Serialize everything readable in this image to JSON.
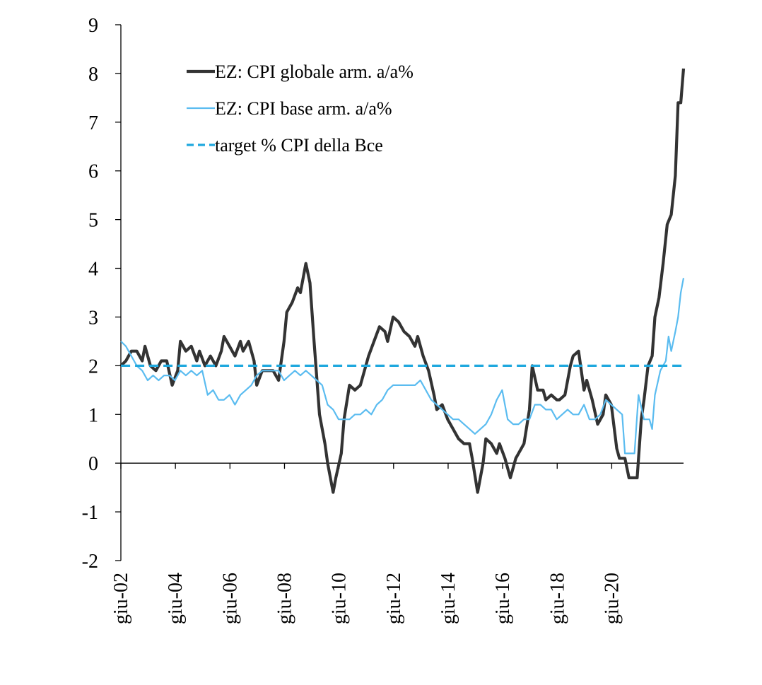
{
  "chart_data": {
    "type": "line",
    "title": "",
    "xlabel": "",
    "ylabel": "",
    "ylim": [
      -2,
      9
    ],
    "yticks": [
      -2,
      -1,
      0,
      1,
      2,
      3,
      4,
      5,
      6,
      7,
      8,
      9
    ],
    "xlim": [
      2002.417,
      2022.333
    ],
    "xticks": [
      {
        "label": "giu-02",
        "x": 2002.417
      },
      {
        "label": "giu-04",
        "x": 2004.417
      },
      {
        "label": "giu-06",
        "x": 2006.417
      },
      {
        "label": "giu-08",
        "x": 2008.417
      },
      {
        "label": "giu-10",
        "x": 2010.417
      },
      {
        "label": "giu-12",
        "x": 2012.417
      },
      {
        "label": "giu-14",
        "x": 2014.417
      },
      {
        "label": "giu-16",
        "x": 2016.417
      },
      {
        "label": "giu-18",
        "x": 2018.417
      },
      {
        "label": "giu-20",
        "x": 2020.417
      }
    ],
    "grid": false,
    "legend_position": "top-left",
    "series": [
      {
        "name": "EZ: CPI globale arm. a/a%",
        "color": "#333333",
        "style": "solid",
        "points": [
          [
            2002.42,
            2.0
          ],
          [
            2002.6,
            2.1
          ],
          [
            2002.8,
            2.3
          ],
          [
            2003.0,
            2.3
          ],
          [
            2003.2,
            2.1
          ],
          [
            2003.3,
            2.4
          ],
          [
            2003.5,
            2.0
          ],
          [
            2003.7,
            1.9
          ],
          [
            2003.9,
            2.1
          ],
          [
            2004.1,
            2.1
          ],
          [
            2004.3,
            1.6
          ],
          [
            2004.5,
            1.9
          ],
          [
            2004.6,
            2.5
          ],
          [
            2004.8,
            2.3
          ],
          [
            2005.0,
            2.4
          ],
          [
            2005.2,
            2.1
          ],
          [
            2005.3,
            2.3
          ],
          [
            2005.5,
            2.0
          ],
          [
            2005.7,
            2.2
          ],
          [
            2005.9,
            2.0
          ],
          [
            2006.1,
            2.3
          ],
          [
            2006.2,
            2.6
          ],
          [
            2006.4,
            2.4
          ],
          [
            2006.6,
            2.2
          ],
          [
            2006.8,
            2.5
          ],
          [
            2006.9,
            2.3
          ],
          [
            2007.1,
            2.5
          ],
          [
            2007.3,
            2.1
          ],
          [
            2007.4,
            1.6
          ],
          [
            2007.6,
            1.9
          ],
          [
            2007.8,
            1.9
          ],
          [
            2008.0,
            1.9
          ],
          [
            2008.2,
            1.7
          ],
          [
            2008.4,
            2.5
          ],
          [
            2008.5,
            3.1
          ],
          [
            2008.7,
            3.3
          ],
          [
            2008.9,
            3.6
          ],
          [
            2009.0,
            3.5
          ],
          [
            2009.2,
            4.1
          ],
          [
            2009.35,
            3.7
          ],
          [
            2009.5,
            2.5
          ],
          [
            2009.7,
            1.0
          ],
          [
            2009.9,
            0.4
          ],
          [
            2010.0,
            0.0
          ],
          [
            2010.2,
            -0.6
          ],
          [
            2010.3,
            -0.3
          ],
          [
            2010.5,
            0.2
          ],
          [
            2010.6,
            0.9
          ],
          [
            2010.8,
            1.6
          ],
          [
            2011.0,
            1.5
          ],
          [
            2011.2,
            1.6
          ],
          [
            2011.3,
            1.8
          ],
          [
            2011.5,
            2.2
          ],
          [
            2011.7,
            2.5
          ],
          [
            2011.9,
            2.8
          ],
          [
            2012.1,
            2.7
          ],
          [
            2012.2,
            2.5
          ],
          [
            2012.4,
            3.0
          ],
          [
            2012.6,
            2.9
          ],
          [
            2012.8,
            2.7
          ],
          [
            2013.0,
            2.6
          ],
          [
            2013.2,
            2.4
          ],
          [
            2013.3,
            2.6
          ],
          [
            2013.5,
            2.2
          ],
          [
            2013.7,
            1.9
          ],
          [
            2013.9,
            1.4
          ],
          [
            2014.0,
            1.1
          ],
          [
            2014.2,
            1.2
          ],
          [
            2014.4,
            0.9
          ],
          [
            2014.6,
            0.7
          ],
          [
            2014.8,
            0.5
          ],
          [
            2015.0,
            0.4
          ],
          [
            2015.2,
            0.4
          ],
          [
            2015.3,
            0.1
          ],
          [
            2015.5,
            -0.6
          ],
          [
            2015.7,
            0.0
          ],
          [
            2015.8,
            0.5
          ],
          [
            2016.0,
            0.4
          ],
          [
            2016.2,
            0.2
          ],
          [
            2016.3,
            0.4
          ],
          [
            2016.5,
            0.1
          ],
          [
            2016.7,
            -0.3
          ],
          [
            2016.9,
            0.1
          ],
          [
            2017.0,
            0.2
          ],
          [
            2017.2,
            0.4
          ],
          [
            2017.4,
            1.1
          ],
          [
            2017.5,
            2.0
          ],
          [
            2017.7,
            1.5
          ],
          [
            2017.9,
            1.5
          ],
          [
            2018.0,
            1.3
          ],
          [
            2018.2,
            1.4
          ],
          [
            2018.4,
            1.3
          ],
          [
            2018.5,
            1.3
          ],
          [
            2018.7,
            1.4
          ],
          [
            2018.9,
            2.0
          ],
          [
            2019.0,
            2.2
          ],
          [
            2019.2,
            2.3
          ],
          [
            2019.4,
            1.5
          ],
          [
            2019.5,
            1.7
          ],
          [
            2019.7,
            1.3
          ],
          [
            2019.9,
            0.8
          ],
          [
            2020.1,
            1.0
          ],
          [
            2020.2,
            1.4
          ],
          [
            2020.4,
            1.2
          ],
          [
            2020.6,
            0.3
          ],
          [
            2020.7,
            0.1
          ],
          [
            2020.9,
            0.1
          ],
          [
            2021.05,
            -0.3
          ],
          [
            2021.2,
            -0.3
          ],
          [
            2021.35,
            -0.3
          ],
          [
            2021.5,
            0.9
          ],
          [
            2021.6,
            1.3
          ],
          [
            2021.75,
            2.0
          ],
          [
            2021.9,
            2.2
          ],
          [
            2022.0,
            3.0
          ],
          [
            2022.15,
            3.4
          ],
          [
            2022.3,
            4.1
          ],
          [
            2022.45,
            4.9
          ],
          [
            2022.6,
            5.1
          ],
          [
            2022.75,
            5.9
          ],
          [
            2022.85,
            7.4
          ],
          [
            2022.95,
            7.4
          ],
          [
            2023.05,
            8.1
          ]
        ]
      },
      {
        "name": "EZ: CPI base arm. a/a%",
        "color": "#5bbcf0",
        "style": "solid",
        "points": [
          [
            2002.42,
            2.5
          ],
          [
            2002.6,
            2.4
          ],
          [
            2002.8,
            2.2
          ],
          [
            2003.0,
            2.0
          ],
          [
            2003.2,
            1.9
          ],
          [
            2003.4,
            1.7
          ],
          [
            2003.6,
            1.8
          ],
          [
            2003.8,
            1.7
          ],
          [
            2004.0,
            1.8
          ],
          [
            2004.2,
            1.8
          ],
          [
            2004.4,
            1.7
          ],
          [
            2004.6,
            1.9
          ],
          [
            2004.8,
            1.8
          ],
          [
            2005.0,
            1.9
          ],
          [
            2005.2,
            1.8
          ],
          [
            2005.4,
            1.9
          ],
          [
            2005.6,
            1.4
          ],
          [
            2005.8,
            1.5
          ],
          [
            2006.0,
            1.3
          ],
          [
            2006.2,
            1.3
          ],
          [
            2006.4,
            1.4
          ],
          [
            2006.6,
            1.2
          ],
          [
            2006.8,
            1.4
          ],
          [
            2007.0,
            1.5
          ],
          [
            2007.2,
            1.6
          ],
          [
            2007.4,
            1.8
          ],
          [
            2007.6,
            1.9
          ],
          [
            2007.8,
            1.9
          ],
          [
            2008.0,
            1.9
          ],
          [
            2008.2,
            1.9
          ],
          [
            2008.4,
            1.7
          ],
          [
            2008.6,
            1.8
          ],
          [
            2008.8,
            1.9
          ],
          [
            2009.0,
            1.8
          ],
          [
            2009.2,
            1.9
          ],
          [
            2009.4,
            1.8
          ],
          [
            2009.6,
            1.7
          ],
          [
            2009.8,
            1.6
          ],
          [
            2010.0,
            1.2
          ],
          [
            2010.2,
            1.1
          ],
          [
            2010.4,
            0.9
          ],
          [
            2010.6,
            0.9
          ],
          [
            2010.8,
            0.9
          ],
          [
            2011.0,
            1.0
          ],
          [
            2011.2,
            1.0
          ],
          [
            2011.4,
            1.1
          ],
          [
            2011.6,
            1.0
          ],
          [
            2011.8,
            1.2
          ],
          [
            2012.0,
            1.3
          ],
          [
            2012.2,
            1.5
          ],
          [
            2012.4,
            1.6
          ],
          [
            2012.6,
            1.6
          ],
          [
            2012.8,
            1.6
          ],
          [
            2013.0,
            1.6
          ],
          [
            2013.2,
            1.6
          ],
          [
            2013.4,
            1.7
          ],
          [
            2013.6,
            1.5
          ],
          [
            2013.8,
            1.3
          ],
          [
            2014.0,
            1.2
          ],
          [
            2014.2,
            1.1
          ],
          [
            2014.4,
            1.0
          ],
          [
            2014.6,
            0.9
          ],
          [
            2014.8,
            0.9
          ],
          [
            2015.0,
            0.8
          ],
          [
            2015.2,
            0.7
          ],
          [
            2015.4,
            0.6
          ],
          [
            2015.6,
            0.7
          ],
          [
            2015.8,
            0.8
          ],
          [
            2016.0,
            1.0
          ],
          [
            2016.2,
            1.3
          ],
          [
            2016.4,
            1.5
          ],
          [
            2016.6,
            0.9
          ],
          [
            2016.8,
            0.8
          ],
          [
            2017.0,
            0.8
          ],
          [
            2017.2,
            0.9
          ],
          [
            2017.4,
            0.9
          ],
          [
            2017.6,
            1.2
          ],
          [
            2017.8,
            1.2
          ],
          [
            2018.0,
            1.1
          ],
          [
            2018.2,
            1.1
          ],
          [
            2018.4,
            0.9
          ],
          [
            2018.6,
            1.0
          ],
          [
            2018.8,
            1.1
          ],
          [
            2019.0,
            1.0
          ],
          [
            2019.2,
            1.0
          ],
          [
            2019.4,
            1.2
          ],
          [
            2019.6,
            0.9
          ],
          [
            2019.8,
            0.9
          ],
          [
            2020.0,
            1.0
          ],
          [
            2020.2,
            1.3
          ],
          [
            2020.4,
            1.2
          ],
          [
            2020.6,
            1.1
          ],
          [
            2020.8,
            1.0
          ],
          [
            2020.9,
            0.2
          ],
          [
            2021.1,
            0.2
          ],
          [
            2021.25,
            0.2
          ],
          [
            2021.4,
            1.4
          ],
          [
            2021.6,
            0.9
          ],
          [
            2021.8,
            0.9
          ],
          [
            2021.9,
            0.7
          ],
          [
            2022.0,
            1.4
          ],
          [
            2022.2,
            1.9
          ],
          [
            2022.4,
            2.1
          ],
          [
            2022.5,
            2.6
          ],
          [
            2022.6,
            2.3
          ],
          [
            2022.75,
            2.7
          ],
          [
            2022.85,
            3.0
          ],
          [
            2022.95,
            3.5
          ],
          [
            2023.05,
            3.8
          ]
        ]
      },
      {
        "name": "target % CPI della Bce",
        "color": "#1fa8de",
        "style": "dashed",
        "points": [
          [
            2002.42,
            2.0
          ],
          [
            2023.05,
            2.0
          ]
        ]
      }
    ]
  }
}
